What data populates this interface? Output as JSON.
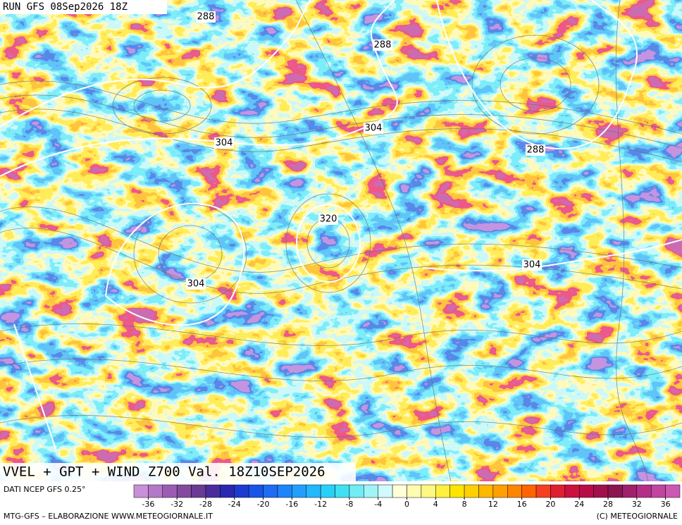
{
  "header": {
    "run": "RUN GFS 08Sep2026 18Z"
  },
  "map": {
    "contour_labels": [
      288,
      288,
      304,
      304,
      288,
      320,
      304,
      304
    ]
  },
  "footer": {
    "title": "VVEL + GPT + WIND Z700 Val. 18Z10SEP2026",
    "source": "DATI NCEP GFS 0.25°",
    "credit": "MTG-GFS – ELABORAZIONE WWW.METEOGIORNALE.IT",
    "copyright": "(C) METEOGIORNALE"
  },
  "colorbar": {
    "lim": [
      -38,
      38
    ],
    "ticks": [
      -36,
      -32,
      -28,
      -24,
      -20,
      -16,
      -12,
      -8,
      -4,
      0,
      4,
      8,
      12,
      16,
      20,
      24,
      28,
      32,
      36
    ],
    "colors": [
      "#c890d8",
      "#b478c8",
      "#9c5cb4",
      "#844aa0",
      "#6a3a94",
      "#4a2c9c",
      "#2a28b0",
      "#1c3cd0",
      "#1a54e8",
      "#1e6cf4",
      "#1e84fa",
      "#20a0fc",
      "#22b8fc",
      "#28d0fa",
      "#40e0f4",
      "#70ecf4",
      "#a0f4f8",
      "#d0fafc",
      "#ffffd8",
      "#fffcb0",
      "#fff880",
      "#fff040",
      "#ffe400",
      "#ffd000",
      "#ffb800",
      "#ffa000",
      "#ff8400",
      "#ff6400",
      "#f44020",
      "#e02030",
      "#cc1040",
      "#b80c48",
      "#a0104c",
      "#8c1450",
      "#a0206c",
      "#b43088",
      "#c044a0",
      "#cc58b4"
    ]
  }
}
